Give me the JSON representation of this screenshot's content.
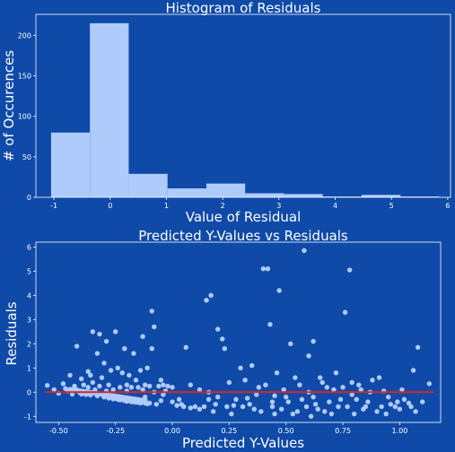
{
  "colors": {
    "background": "#0f4aa8",
    "bar_fill": "#aecbfb",
    "point_fill": "#aecbfb",
    "fit_line": "#d62728",
    "text": "#ffffff"
  },
  "chart_data": [
    {
      "type": "bar",
      "title": "Histogram of Residuals",
      "xlabel": "Value of Residual",
      "ylabel": "# of Occurences",
      "xlim": [
        -1.32,
        6.05
      ],
      "ylim": [
        0,
        226
      ],
      "xticks": [
        "-1",
        "0",
        "1",
        "2",
        "3",
        "4",
        "5",
        "6"
      ],
      "yticks": [
        "0",
        "50",
        "100",
        "150",
        "200"
      ],
      "bins": [
        {
          "x0": -1.05,
          "x1": -0.36,
          "count": 80
        },
        {
          "x0": -0.36,
          "x1": 0.33,
          "count": 215
        },
        {
          "x0": 0.33,
          "x1": 1.02,
          "count": 29
        },
        {
          "x0": 1.02,
          "x1": 1.71,
          "count": 11
        },
        {
          "x0": 1.71,
          "x1": 2.4,
          "count": 17
        },
        {
          "x0": 2.4,
          "x1": 3.09,
          "count": 5
        },
        {
          "x0": 3.09,
          "x1": 3.78,
          "count": 4
        },
        {
          "x0": 3.78,
          "x1": 4.47,
          "count": 1
        },
        {
          "x0": 4.47,
          "x1": 5.16,
          "count": 3
        },
        {
          "x0": 5.16,
          "x1": 5.85,
          "count": 1
        }
      ]
    },
    {
      "type": "scatter",
      "title": "Predicted Y-Values vs Residuals",
      "xlabel": "Predicted Y-Values",
      "ylabel": "Residuals",
      "xlim": [
        -0.6,
        1.18
      ],
      "ylim": [
        -1.25,
        6.2
      ],
      "xticks": [
        "-0.50",
        "-0.25",
        "0.00",
        "0.25",
        "0.50",
        "0.75",
        "1.00"
      ],
      "yticks": [
        "-1",
        "0",
        "1",
        "2",
        "3",
        "4",
        "5",
        "6"
      ],
      "fit_line": {
        "x": [
          -0.56,
          1.15
        ],
        "y": [
          0.0,
          0.0
        ]
      },
      "points": [
        [
          -0.55,
          0.28
        ],
        [
          -0.52,
          0.1
        ],
        [
          -0.5,
          -0.05
        ],
        [
          -0.48,
          0.35
        ],
        [
          -0.47,
          0.15
        ],
        [
          -0.46,
          0.05
        ],
        [
          -0.45,
          0.7
        ],
        [
          -0.44,
          -0.02
        ],
        [
          -0.43,
          0.25
        ],
        [
          -0.42,
          1.9
        ],
        [
          -0.42,
          0.1
        ],
        [
          -0.41,
          0.0
        ],
        [
          -0.4,
          0.55
        ],
        [
          -0.4,
          -0.08
        ],
        [
          -0.39,
          0.3
        ],
        [
          -0.38,
          0.0
        ],
        [
          -0.38,
          -0.1
        ],
        [
          -0.37,
          0.2
        ],
        [
          -0.37,
          0.85
        ],
        [
          -0.36,
          -0.12
        ],
        [
          -0.35,
          2.5
        ],
        [
          -0.35,
          0.4
        ],
        [
          -0.34,
          -0.05
        ],
        [
          -0.34,
          0.1
        ],
        [
          -0.33,
          1.6
        ],
        [
          -0.33,
          -0.15
        ],
        [
          -0.32,
          2.4
        ],
        [
          -0.32,
          0.25
        ],
        [
          -0.31,
          -0.1
        ],
        [
          -0.31,
          0.6
        ],
        [
          -0.3,
          1.2
        ],
        [
          -0.3,
          -0.2
        ],
        [
          -0.29,
          0.05
        ],
        [
          -0.29,
          2.1
        ],
        [
          -0.28,
          -0.25
        ],
        [
          -0.28,
          0.3
        ],
        [
          -0.27,
          -0.2
        ],
        [
          -0.27,
          0.9
        ],
        [
          -0.26,
          -0.28
        ],
        [
          -0.26,
          0.1
        ],
        [
          -0.25,
          2.5
        ],
        [
          -0.25,
          -0.25
        ],
        [
          -0.24,
          1.0
        ],
        [
          -0.24,
          -0.3
        ],
        [
          -0.23,
          0.2
        ],
        [
          -0.23,
          -0.32
        ],
        [
          -0.22,
          0.8
        ],
        [
          -0.22,
          -0.3
        ],
        [
          -0.21,
          1.8
        ],
        [
          -0.21,
          -0.35
        ],
        [
          -0.2,
          0.3
        ],
        [
          -0.2,
          -0.38
        ],
        [
          -0.19,
          0.7
        ],
        [
          -0.19,
          -0.35
        ],
        [
          -0.18,
          0.2
        ],
        [
          -0.18,
          -0.4
        ],
        [
          -0.17,
          1.6
        ],
        [
          -0.17,
          -0.4
        ],
        [
          -0.16,
          0.5
        ],
        [
          -0.16,
          -0.42
        ],
        [
          -0.15,
          0.2
        ],
        [
          -0.15,
          -0.42
        ],
        [
          -0.14,
          0.9
        ],
        [
          -0.14,
          -0.45
        ],
        [
          -0.13,
          2.3
        ],
        [
          -0.13,
          0.1
        ],
        [
          -0.12,
          -0.45
        ],
        [
          -0.12,
          0.3
        ],
        [
          -0.11,
          1.0
        ],
        [
          -0.11,
          -0.48
        ],
        [
          -0.1,
          0.25
        ],
        [
          -0.1,
          -0.45
        ],
        [
          -0.09,
          3.35
        ],
        [
          -0.09,
          1.8
        ],
        [
          -0.08,
          2.7
        ],
        [
          -0.08,
          0.0
        ],
        [
          -0.07,
          -0.5
        ],
        [
          -0.06,
          0.25
        ],
        [
          -0.05,
          -0.35
        ],
        [
          -0.04,
          0.3
        ],
        [
          -0.03,
          0.05
        ],
        [
          -0.02,
          0.25
        ],
        [
          0.0,
          0.2
        ],
        [
          0.02,
          -0.55
        ],
        [
          0.04,
          -0.5
        ],
        [
          0.05,
          -0.6
        ],
        [
          0.06,
          1.85
        ],
        [
          0.08,
          -0.65
        ],
        [
          0.1,
          -0.6
        ],
        [
          0.12,
          -0.7
        ],
        [
          0.14,
          -0.6
        ],
        [
          0.15,
          3.8
        ],
        [
          0.16,
          -0.3
        ],
        [
          0.17,
          4.0
        ],
        [
          0.18,
          -0.8
        ],
        [
          0.19,
          -0.5
        ],
        [
          0.2,
          2.6
        ],
        [
          0.22,
          2.2
        ],
        [
          0.23,
          1.8
        ],
        [
          0.24,
          -0.6
        ],
        [
          0.26,
          -0.9
        ],
        [
          0.28,
          -0.3
        ],
        [
          0.3,
          1.0
        ],
        [
          0.32,
          0.5
        ],
        [
          0.34,
          -0.5
        ],
        [
          0.35,
          1.1
        ],
        [
          0.36,
          -0.7
        ],
        [
          0.38,
          0.2
        ],
        [
          0.39,
          -0.8
        ],
        [
          0.4,
          5.1
        ],
        [
          0.42,
          5.1
        ],
        [
          0.43,
          2.8
        ],
        [
          0.44,
          -0.4
        ],
        [
          0.45,
          -0.9
        ],
        [
          0.46,
          0.8
        ],
        [
          0.47,
          4.2
        ],
        [
          0.48,
          -0.7
        ],
        [
          0.5,
          -0.2
        ],
        [
          0.52,
          2.0
        ],
        [
          0.53,
          -0.9
        ],
        [
          0.55,
          -0.8
        ],
        [
          0.56,
          0.3
        ],
        [
          0.58,
          5.85
        ],
        [
          0.59,
          -0.6
        ],
        [
          0.6,
          1.5
        ],
        [
          0.61,
          -1.0
        ],
        [
          0.62,
          2.1
        ],
        [
          0.63,
          -0.5
        ],
        [
          0.65,
          0.6
        ],
        [
          0.67,
          -0.8
        ],
        [
          0.68,
          0.2
        ],
        [
          0.7,
          -0.9
        ],
        [
          0.72,
          0.8
        ],
        [
          0.74,
          -0.3
        ],
        [
          0.76,
          3.3
        ],
        [
          0.77,
          -0.6
        ],
        [
          0.78,
          5.05
        ],
        [
          0.79,
          0.4
        ],
        [
          0.8,
          -0.9
        ],
        [
          0.82,
          0.3
        ],
        [
          0.84,
          -0.7
        ],
        [
          0.86,
          -0.4
        ],
        [
          0.88,
          0.5
        ],
        [
          0.9,
          -0.8
        ],
        [
          0.92,
          -0.6
        ],
        [
          0.94,
          -0.9
        ],
        [
          0.96,
          -0.5
        ],
        [
          0.98,
          -0.6
        ],
        [
          1.0,
          -0.7
        ],
        [
          1.02,
          -0.3
        ],
        [
          1.04,
          -0.45
        ],
        [
          1.06,
          0.9
        ],
        [
          1.07,
          -0.8
        ],
        [
          1.08,
          1.85
        ],
        [
          1.1,
          -0.4
        ],
        [
          1.13,
          0.35
        ],
        [
          -0.05,
          0.5
        ],
        [
          0.0,
          -0.4
        ],
        [
          0.08,
          0.3
        ],
        [
          0.12,
          0.1
        ],
        [
          0.2,
          -0.2
        ],
        [
          0.25,
          0.4
        ],
        [
          0.31,
          -0.6
        ],
        [
          0.37,
          -0.1
        ],
        [
          0.41,
          0.3
        ],
        [
          0.44,
          -0.6
        ],
        [
          0.49,
          0.1
        ],
        [
          0.51,
          -0.4
        ],
        [
          0.54,
          0.6
        ],
        [
          0.57,
          -0.3
        ],
        [
          0.6,
          0.0
        ],
        [
          0.64,
          -0.7
        ],
        [
          0.66,
          0.4
        ],
        [
          0.69,
          -0.4
        ],
        [
          0.71,
          0.1
        ],
        [
          0.73,
          -0.6
        ],
        [
          0.75,
          0.2
        ],
        [
          0.81,
          -0.3
        ],
        [
          0.83,
          0.1
        ],
        [
          0.85,
          -0.6
        ],
        [
          0.87,
          0.0
        ],
        [
          0.91,
          0.6
        ],
        [
          0.95,
          -0.2
        ],
        [
          0.99,
          -0.4
        ],
        [
          1.01,
          0.1
        ],
        [
          1.05,
          -0.6
        ],
        [
          -0.44,
          -0.08
        ],
        [
          -0.36,
          0.7
        ],
        [
          -0.28,
          -0.15
        ],
        [
          -0.2,
          0.05
        ],
        [
          -0.12,
          -0.2
        ],
        [
          -0.04,
          -0.1
        ],
        [
          0.03,
          -0.3
        ],
        [
          0.16,
          0.0
        ],
        [
          0.27,
          -0.55
        ],
        [
          0.33,
          -0.25
        ],
        [
          0.45,
          -0.15
        ],
        [
          0.62,
          -0.2
        ],
        [
          0.79,
          -0.1
        ],
        [
          0.93,
          0.05
        ]
      ]
    }
  ]
}
